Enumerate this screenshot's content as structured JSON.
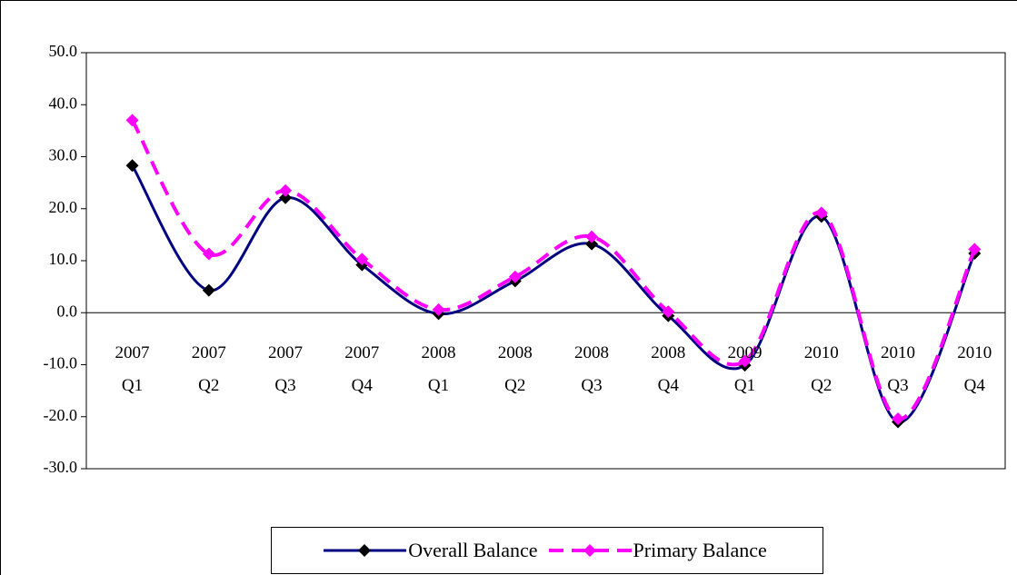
{
  "chart_data": {
    "type": "line",
    "categories": [
      "2007 Q1",
      "2007 Q2",
      "2007 Q3",
      "2007 Q4",
      "2008 Q1",
      "2008 Q2",
      "2008 Q3",
      "2008 Q4",
      "2009 Q1",
      "2010 Q2",
      "2010 Q3",
      "2010 Q4"
    ],
    "series": [
      {
        "name": "Overall Balance",
        "color": "#000080",
        "marker_color": "#000000",
        "dashed": false,
        "values": [
          28.3,
          4.3,
          22.1,
          9.2,
          -0.2,
          6.1,
          13.2,
          -0.6,
          -10.1,
          18.5,
          -21.0,
          11.4
        ]
      },
      {
        "name": "Primary Balance",
        "color": "#ff00ff",
        "marker_color": "#ff00ff",
        "dashed": true,
        "values": [
          37.0,
          11.3,
          23.5,
          10.3,
          0.6,
          6.9,
          14.6,
          0.2,
          -9.3,
          19.2,
          -20.4,
          12.2
        ]
      }
    ],
    "ylim": [
      -30,
      50
    ],
    "yticks": [
      {
        "value": -30,
        "label": "-30.0"
      },
      {
        "value": -20,
        "label": "-20.0"
      },
      {
        "value": -10,
        "label": "-10.0"
      },
      {
        "value": 0,
        "label": "0.0"
      },
      {
        "value": 10,
        "label": "10.0"
      },
      {
        "value": 20,
        "label": "20.0"
      },
      {
        "value": 30,
        "label": "30.0"
      },
      {
        "value": 40,
        "label": "40.0"
      },
      {
        "value": 50,
        "label": "50.0"
      }
    ],
    "smooth": true,
    "legend": "bottom"
  }
}
